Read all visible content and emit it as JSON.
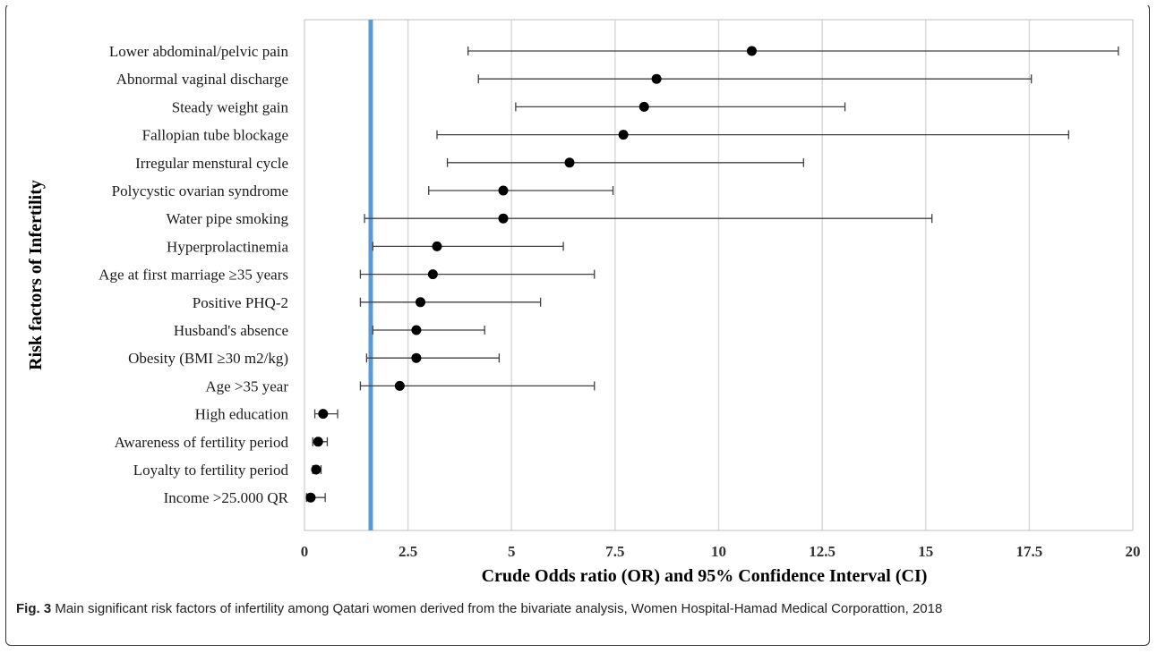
{
  "chart_data": {
    "type": "forest",
    "categories": [
      "Lower abdominal/pelvic pain",
      "Abnormal vaginal discharge",
      "Steady weight gain ",
      "Fallopian tube blockage",
      "Irregular menstural cycle",
      "Polycystic ovarian syndrome",
      "Water pipe smoking",
      "Hyperprolactinemia",
      "Age at first marriage ≥35 years",
      "Positive PHQ-2",
      "Husband's absence",
      "Obesity (BMI ≥30 m2/kg)",
      "Age >35 year",
      "High education",
      "Awareness of fertility period",
      "Loyalty to fertility period",
      "Income >25.000 QR"
    ],
    "or": [
      10.8,
      8.5,
      8.2,
      7.7,
      6.4,
      4.8,
      4.8,
      3.2,
      3.1,
      2.8,
      2.7,
      2.7,
      2.3,
      0.45,
      0.33,
      0.28,
      0.15
    ],
    "ci_lower": [
      3.95,
      4.2,
      5.1,
      3.2,
      3.45,
      3.0,
      1.45,
      1.65,
      1.35,
      1.35,
      1.65,
      1.5,
      1.35,
      0.25,
      0.2,
      0.2,
      0.05
    ],
    "ci_upper": [
      19.65,
      17.55,
      13.05,
      18.45,
      12.05,
      7.45,
      15.15,
      6.25,
      7.0,
      5.7,
      4.35,
      4.7,
      7.0,
      0.8,
      0.55,
      0.4,
      0.5
    ],
    "reference_line": 1.6,
    "xlim": [
      0,
      20
    ],
    "xticks": [
      0,
      2.5,
      5,
      7.5,
      10,
      12.5,
      15,
      17.5,
      20
    ],
    "xtick_labels": [
      "0",
      "2.5",
      "5",
      "7.5",
      "10",
      "12.5",
      "15",
      "17.5",
      "20"
    ],
    "xlabel": "Crude Odds ratio (OR) and 95% Confidence Interval (CI)",
    "ylabel": "Risk factors of Infertility",
    "grid": "vertical",
    "colors": {
      "reference_line": "#5b9bd5",
      "marker": "#000000",
      "ci": "#404040",
      "grid": "#d9d9d9"
    }
  },
  "caption": {
    "label": "Fig. 3",
    "text": " Main significant risk factors of infertility among Qatari women derived from the bivariate analysis, Women Hospital-Hamad Medical Corporattion, 2018"
  }
}
